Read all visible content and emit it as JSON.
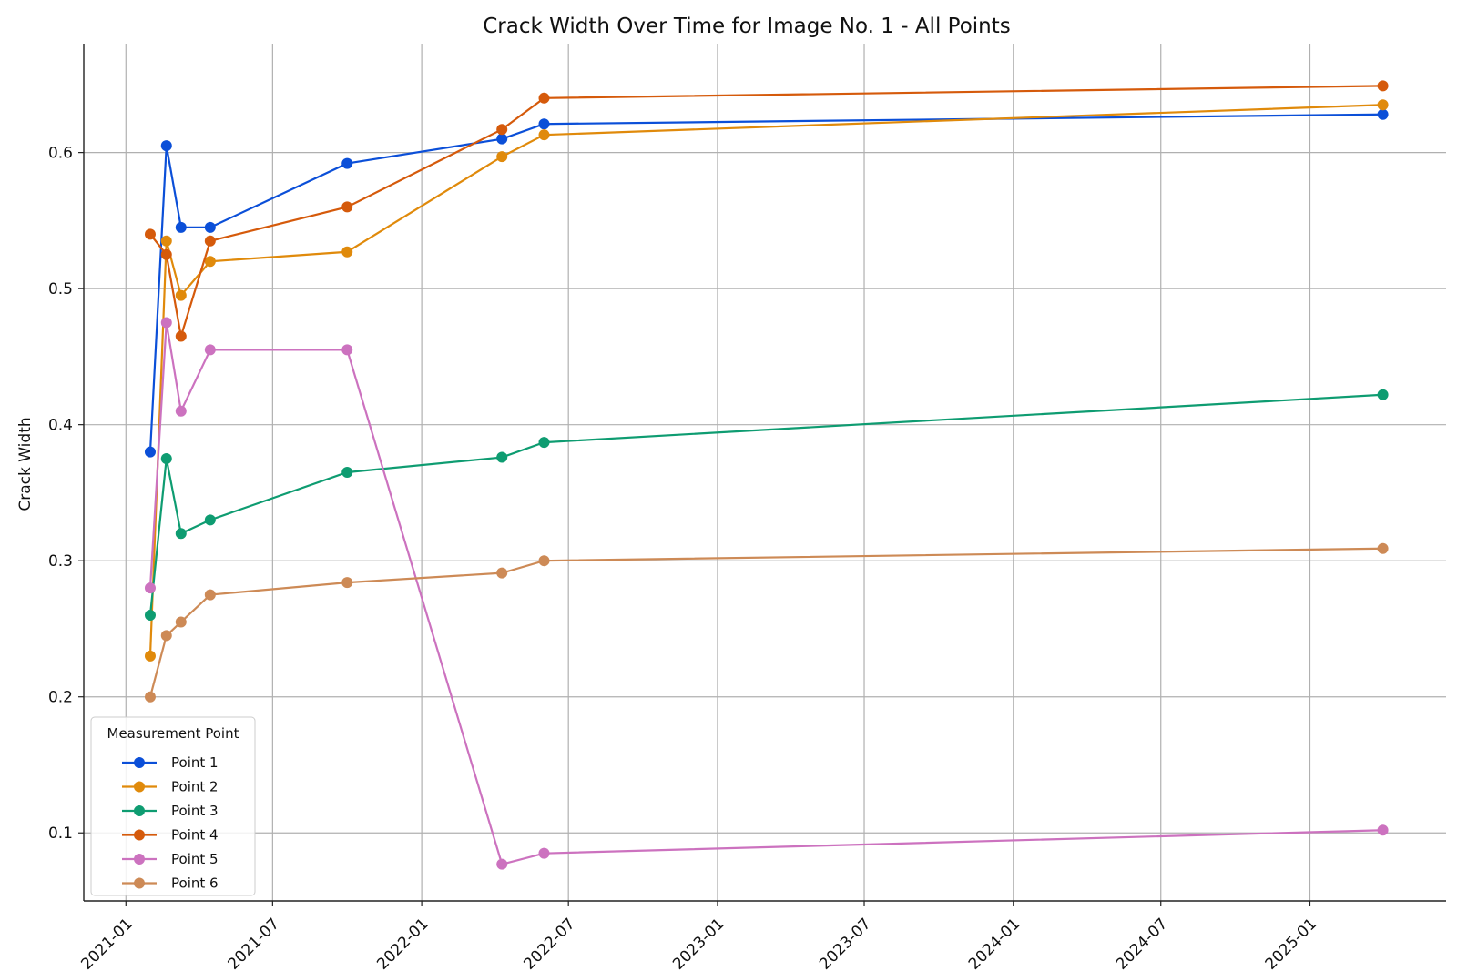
{
  "chart_data": {
    "type": "line",
    "title": "Crack Width Over Time for Image No. 1 - All Points",
    "xlabel": "",
    "ylabel": "Crack Width",
    "x": [
      "2021-01-31",
      "2021-02-20",
      "2021-03-10",
      "2021-04-15",
      "2021-10-01",
      "2022-04-10",
      "2022-06-01",
      "2025-04-01"
    ],
    "x_ticks": [
      "2021-01",
      "2021-07",
      "2022-01",
      "2022-07",
      "2023-01",
      "2023-07",
      "2024-01",
      "2024-07",
      "2025-01"
    ],
    "xlim": [
      "2020-11-10",
      "2025-06-18"
    ],
    "y_ticks": [
      "0.1",
      "0.2",
      "0.3",
      "0.4",
      "0.5",
      "0.6"
    ],
    "ylim": [
      0.05,
      0.68
    ],
    "grid": true,
    "legend": {
      "title": "Measurement Point",
      "placement": "lower-left"
    },
    "series": [
      {
        "name": "Point 1",
        "color": "#0b4fd8",
        "values": [
          0.38,
          0.605,
          0.545,
          0.545,
          0.592,
          0.61,
          0.621,
          0.628
        ]
      },
      {
        "name": "Point 2",
        "color": "#e08a0b",
        "values": [
          0.23,
          0.535,
          0.495,
          0.52,
          0.527,
          0.597,
          0.613,
          0.635
        ]
      },
      {
        "name": "Point 3",
        "color": "#0e9c71",
        "values": [
          0.26,
          0.375,
          0.32,
          0.33,
          0.365,
          0.376,
          0.387,
          0.422
        ]
      },
      {
        "name": "Point 4",
        "color": "#d55a0b",
        "values": [
          0.54,
          0.525,
          0.465,
          0.535,
          0.56,
          0.617,
          0.64,
          0.649
        ]
      },
      {
        "name": "Point 5",
        "color": "#cc72bf",
        "values": [
          0.28,
          0.475,
          0.41,
          0.455,
          0.455,
          0.077,
          0.085,
          0.102
        ]
      },
      {
        "name": "Point 6",
        "color": "#cd8a56",
        "values": [
          0.2,
          0.245,
          0.255,
          0.275,
          0.284,
          0.291,
          0.3,
          0.309
        ]
      }
    ]
  }
}
